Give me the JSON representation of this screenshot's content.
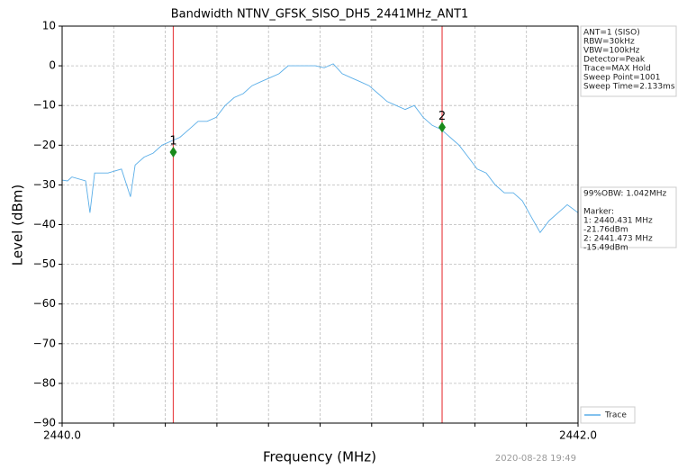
{
  "chart_data": {
    "type": "line",
    "title": "Bandwidth NTNV_GFSK_SISO_DH5_2441MHz_ANT1",
    "x_label": "Frequency (MHz)",
    "y_label": "Level (dBm)",
    "xlim": [
      2440,
      2442
    ],
    "ylim": [
      -90,
      10
    ],
    "xticks": [
      {
        "value": 2440,
        "label": "2440.0"
      },
      {
        "value": 2442,
        "label": "2442.0"
      }
    ],
    "xminor": [
      2440.2,
      2440.4,
      2440.6,
      2440.8,
      2441.0,
      2441.2,
      2441.4,
      2441.6,
      2441.8
    ],
    "yticks": [
      {
        "value": 10,
        "label": "10"
      },
      {
        "value": 0,
        "label": "0"
      },
      {
        "value": -10,
        "label": "−10"
      },
      {
        "value": -20,
        "label": "−20"
      },
      {
        "value": -30,
        "label": "−30"
      },
      {
        "value": -40,
        "label": "−40"
      },
      {
        "value": -50,
        "label": "−50"
      },
      {
        "value": -60,
        "label": "−60"
      },
      {
        "value": -70,
        "label": "−70"
      },
      {
        "value": -80,
        "label": "−80"
      },
      {
        "value": -90,
        "label": "−90"
      }
    ],
    "grid": true,
    "series": [
      {
        "name": "Trace",
        "color": "#5aaee8",
        "x": [
          2440.0,
          2440.021,
          2440.038,
          2440.091,
          2440.108,
          2440.126,
          2440.178,
          2440.23,
          2440.265,
          2440.283,
          2440.318,
          2440.353,
          2440.387,
          2440.422,
          2440.457,
          2440.492,
          2440.527,
          2440.562,
          2440.597,
          2440.632,
          2440.667,
          2440.702,
          2440.736,
          2440.771,
          2440.806,
          2440.841,
          2440.876,
          2440.911,
          2440.946,
          2440.981,
          2441.016,
          2441.051,
          2441.086,
          2441.12,
          2441.155,
          2441.19,
          2441.225,
          2441.26,
          2441.295,
          2441.33,
          2441.365,
          2441.4,
          2441.435,
          2441.469,
          2441.504,
          2441.539,
          2441.574,
          2441.609,
          2441.644,
          2441.679,
          2441.714,
          2441.749,
          2441.784,
          2441.818,
          2441.853,
          2441.888,
          2441.923,
          2441.958,
          2442.0
        ],
        "values": [
          -28.8,
          -29,
          -28,
          -29,
          -37,
          -27,
          -27,
          -26,
          -33,
          -25,
          -23,
          -22,
          -20,
          -19,
          -18,
          -16,
          -14,
          -14,
          -13,
          -10,
          -8,
          -7,
          -5,
          -4,
          -3,
          -2,
          0,
          0,
          0,
          0,
          -0.5,
          0.5,
          -2,
          -3,
          -4,
          -5,
          -7,
          -9,
          -10,
          -11,
          -10,
          -13,
          -15,
          -16,
          -18,
          -20,
          -23,
          -26,
          -27,
          -30,
          -32,
          -32,
          -34,
          -38,
          -42,
          -39,
          -37,
          -35,
          -37
        ]
      }
    ],
    "markers": [
      {
        "label": "1",
        "x": 2440.431,
        "y": -21.76
      },
      {
        "label": "2",
        "x": 2441.473,
        "y": -15.49
      }
    ],
    "marker_color": "#e8474a",
    "info": [
      "ANT=1 (SISO)",
      "RBW=30kHz",
      "VBW=100kHz",
      "Detector=Peak",
      "Trace=MAX Hold",
      "Sweep Point=1001",
      "Sweep Time=2.133ms"
    ],
    "result": [
      "99%OBW: 1.042MHz",
      "Marker:",
      "1: 2440.431 MHz",
      "   -21.76dBm",
      "2: 2441.473 MHz",
      "   -15.49dBm"
    ],
    "legend": "lower right",
    "timestamp": "2020-08-28 19:49"
  }
}
